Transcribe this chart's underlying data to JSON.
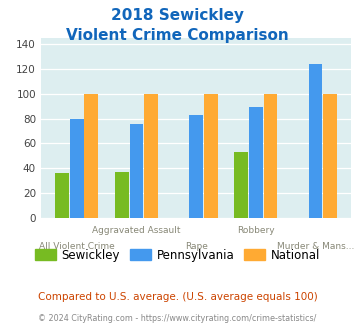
{
  "title_line1": "2018 Sewickley",
  "title_line2": "Violent Crime Comparison",
  "categories": [
    "All Violent Crime",
    "Aggravated Assault",
    "Rape",
    "Robbery",
    "Murder & Mans..."
  ],
  "sewickley": [
    36,
    37,
    0,
    53,
    0
  ],
  "pennsylvania": [
    80,
    76,
    83,
    89,
    124
  ],
  "national": [
    100,
    100,
    100,
    100,
    100
  ],
  "color_sewickley": "#77bb22",
  "color_pennsylvania": "#4499ee",
  "color_national": "#ffaa33",
  "color_title": "#1166bb",
  "color_bg": "#ddeef0",
  "color_note": "#cc4400",
  "color_copyright": "#888888",
  "color_copyright_link": "#4499ee",
  "ylim": [
    0,
    145
  ],
  "yticks": [
    0,
    20,
    40,
    60,
    80,
    100,
    120,
    140
  ],
  "legend_labels": [
    "Sewickley",
    "Pennsylvania",
    "National"
  ],
  "note_text": "Compared to U.S. average. (U.S. average equals 100)",
  "copyright_text": "© 2024 CityRating.com - https://www.cityrating.com/crime-statistics/",
  "top_labels": [
    "",
    "Aggravated Assault",
    "",
    "Robbery",
    ""
  ],
  "bottom_labels": [
    "All Violent Crime",
    "",
    "Rape",
    "",
    "Murder & Mans..."
  ]
}
